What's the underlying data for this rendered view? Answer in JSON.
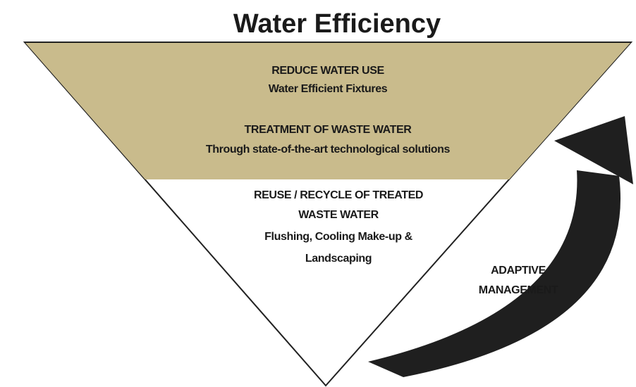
{
  "title": "Water Efficiency",
  "tiers": [
    {
      "heading": [
        "REDUCE WATER USE"
      ],
      "detail": [
        "Water Efficient Fixtures"
      ]
    },
    {
      "heading": [
        "TREATMENT OF WASTE WATER"
      ],
      "detail": [
        "Through state-of-the-art technological solutions"
      ]
    },
    {
      "heading": [
        "REUSE / RECYCLE OF TREATED",
        "WASTE WATER"
      ],
      "detail": [
        "Flushing, Cooling Make-up &",
        "Landscaping"
      ]
    }
  ],
  "cycle": {
    "label": [
      "ADAPTIVE",
      "MANAGEMENT"
    ]
  }
}
